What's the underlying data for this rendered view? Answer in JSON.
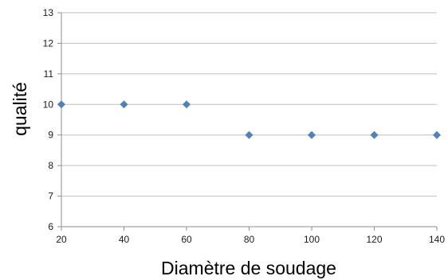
{
  "chart_data": {
    "type": "scatter",
    "title": "",
    "xlabel": "Diamètre de soudage",
    "ylabel": "qualité",
    "x": [
      20,
      40,
      60,
      80,
      100,
      120,
      140
    ],
    "y": [
      10,
      10,
      10,
      9,
      9,
      9,
      9
    ],
    "xlim": [
      20,
      140
    ],
    "ylim": [
      6,
      13
    ],
    "xticks": [
      20,
      40,
      60,
      80,
      100,
      120,
      140
    ],
    "yticks": [
      6,
      7,
      8,
      9,
      10,
      11,
      12,
      13
    ],
    "grid": true,
    "legend": "none",
    "marker": "diamond",
    "colors": {
      "marker": "#4f81bd",
      "grid": "#bfbfbf",
      "axis": "#8c8c8c"
    }
  }
}
